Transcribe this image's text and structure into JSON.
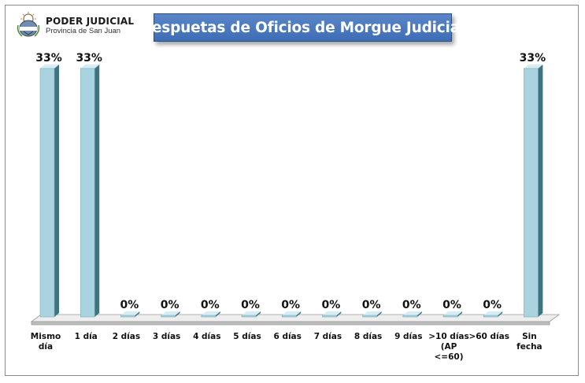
{
  "header": {
    "org_name": "PODER JUDICIAL",
    "org_sub": "Provincia de San Juan"
  },
  "icons": {
    "logo": "court-seal-icon"
  },
  "colors": {
    "bar_front": "#a8d3df",
    "bar_side": "#3e7480",
    "bar_top": "#d7edf3",
    "floor_top": "#eeeeee",
    "floor_front": "#bdbdbd",
    "title_bg": "#4a78bd"
  },
  "chart_data": {
    "type": "bar",
    "title": "Respuetas de Oficios de Morgue Judicial",
    "categories": [
      [
        "Mismo",
        "día"
      ],
      [
        "1 día"
      ],
      [
        "2 días"
      ],
      [
        "3 días"
      ],
      [
        "4 días"
      ],
      [
        "5 días"
      ],
      [
        "6 días"
      ],
      [
        "7 días"
      ],
      [
        "8 días"
      ],
      [
        "9 días"
      ],
      [
        ">10 días",
        "(AP",
        "<=60)"
      ],
      [
        ">60 días"
      ],
      [
        "Sin",
        "fecha"
      ]
    ],
    "values": [
      33,
      33,
      0,
      0,
      0,
      0,
      0,
      0,
      0,
      0,
      0,
      0,
      33
    ],
    "value_labels": [
      "33%",
      "33%",
      "0%",
      "0%",
      "0%",
      "0%",
      "0%",
      "0%",
      "0%",
      "0%",
      "0%",
      "0%",
      "33%"
    ],
    "ylim": [
      0,
      33
    ],
    "grid": false,
    "style": "3d-column"
  }
}
